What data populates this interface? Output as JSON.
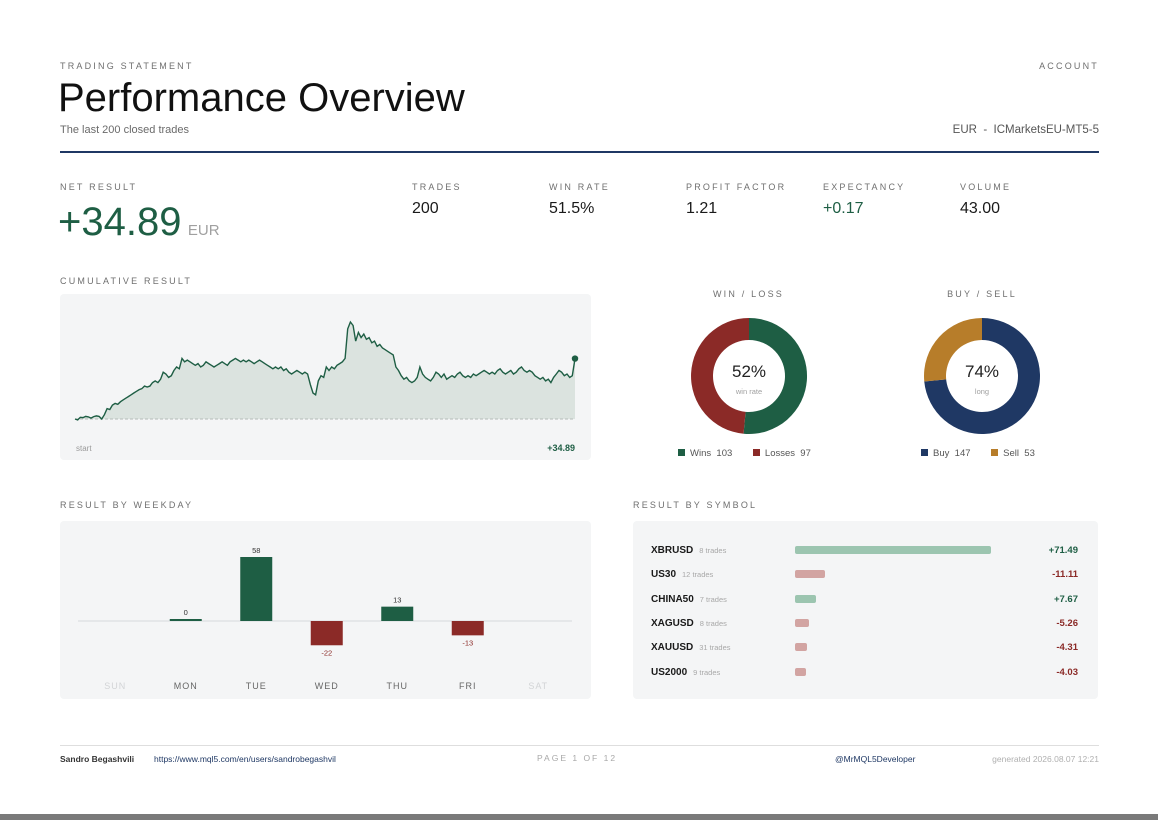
{
  "header": {
    "kicker": "TRADING STATEMENT",
    "title": "Performance Overview",
    "subtitle": "The last 200 closed trades",
    "account_label": "ACCOUNT",
    "account_info": "EUR  -  ICMarketsEU-MT5-5"
  },
  "stats": {
    "net_label": "NET RESULT",
    "net_value": "+34.89",
    "net_currency": "EUR",
    "items": [
      {
        "label": "TRADES",
        "value": "200"
      },
      {
        "label": "WIN RATE",
        "value": "51.5%"
      },
      {
        "label": "PROFIT FACTOR",
        "value": "1.21"
      },
      {
        "label": "EXPECTANCY",
        "value": "+0.17"
      },
      {
        "label": "VOLUME",
        "value": "43.00"
      }
    ]
  },
  "colors": {
    "green": "#1e5e44",
    "red": "#8b2a27",
    "navy": "#1f3864",
    "gold": "#b77d2a",
    "panel": "#f4f5f6",
    "area_fill": "#dbe3df",
    "bar_pos_light": "#9cc5b0",
    "bar_neg_light": "#d2a4a2"
  },
  "cumulative": {
    "title": "CUMULATIVE RESULT",
    "start_label": "start",
    "end_label": "+34.89"
  },
  "win_loss": {
    "title": "WIN / LOSS",
    "center_value": "52%",
    "center_label": "win rate",
    "legend": [
      {
        "name": "Wins",
        "count": "103",
        "color": "#1e5e44"
      },
      {
        "name": "Losses",
        "count": "97",
        "color": "#8b2a27"
      }
    ]
  },
  "buy_sell": {
    "title": "BUY / SELL",
    "center_value": "74%",
    "center_label": "long",
    "legend": [
      {
        "name": "Buy",
        "count": "147",
        "color": "#1f3864"
      },
      {
        "name": "Sell",
        "count": "53",
        "color": "#b77d2a"
      }
    ]
  },
  "weekday": {
    "title": "RESULT BY WEEKDAY"
  },
  "symbols": {
    "title": "RESULT BY SYMBOL",
    "rows": [
      {
        "symbol": "XBRUSD",
        "trades": "8 trades",
        "value": "+71.49",
        "amount": 71.49
      },
      {
        "symbol": "US30",
        "trades": "12 trades",
        "value": "-11.11",
        "amount": -11.11
      },
      {
        "symbol": "CHINA50",
        "trades": "7 trades",
        "value": "+7.67",
        "amount": 7.67
      },
      {
        "symbol": "XAGUSD",
        "trades": "8 trades",
        "value": "-5.26",
        "amount": -5.26
      },
      {
        "symbol": "XAUUSD",
        "trades": "31 trades",
        "value": "-4.31",
        "amount": -4.31
      },
      {
        "symbol": "US2000",
        "trades": "9 trades",
        "value": "-4.03",
        "amount": -4.03
      }
    ]
  },
  "footer": {
    "author": "Sandro Begashvili",
    "url": "https://www.mql5.com/en/users/sandrobegashvil",
    "page": "PAGE 1 OF 12",
    "handle": "@MrMQL5Developer",
    "generated": "generated 2026.08.07 12:21"
  },
  "chart_data": [
    {
      "type": "area",
      "title": "CUMULATIVE RESULT",
      "x_labels": [
        "start",
        "+34.89"
      ],
      "y": [
        0,
        -0.5,
        1,
        0.8,
        1.5,
        1.2,
        0.5,
        1.4,
        1.8,
        1.5,
        0,
        2.5,
        6,
        5.5,
        8,
        9,
        8.5,
        10,
        11,
        12,
        13,
        14,
        15,
        16,
        17,
        17.5,
        19,
        18.5,
        19,
        21,
        22,
        21,
        23,
        27,
        26,
        24,
        25,
        28,
        30,
        29,
        35,
        33,
        34,
        33,
        32,
        31,
        32,
        30,
        31,
        33,
        32,
        31,
        30,
        31,
        32,
        33,
        32,
        31,
        33,
        34,
        35,
        34,
        33,
        34,
        33,
        34,
        33,
        32,
        33,
        34,
        33,
        32,
        31,
        30,
        29,
        30,
        29,
        30,
        28,
        29,
        27,
        26,
        27,
        28,
        27,
        26,
        27,
        26,
        20,
        15,
        14,
        22,
        25,
        24,
        30,
        28,
        30,
        29,
        31,
        32,
        33,
        35,
        52,
        56,
        54,
        45,
        50,
        47,
        49,
        46,
        47,
        44,
        45,
        42,
        43,
        41,
        40,
        39,
        38,
        37,
        30,
        28,
        25,
        23,
        24,
        22,
        21,
        22,
        24,
        30,
        26,
        24,
        23,
        22,
        24,
        27,
        26,
        24,
        26,
        23,
        24,
        25,
        24,
        26,
        27,
        25,
        24,
        25,
        24,
        26,
        25,
        26,
        27,
        28,
        27,
        26,
        27,
        26,
        28,
        29,
        27,
        26,
        27,
        28,
        26,
        27,
        29,
        30,
        28,
        27,
        28,
        27,
        25,
        24,
        23,
        24,
        22,
        23,
        21,
        24,
        26,
        28,
        27,
        25,
        26,
        24,
        25,
        34.89
      ]
    },
    {
      "type": "pie",
      "title": "WIN / LOSS",
      "labels": [
        "Wins",
        "Losses"
      ],
      "values": [
        103,
        97
      ]
    },
    {
      "type": "pie",
      "title": "BUY / SELL",
      "labels": [
        "Buy",
        "Sell"
      ],
      "values": [
        147,
        53
      ]
    },
    {
      "type": "bar",
      "title": "RESULT BY WEEKDAY",
      "categories": [
        "SUN",
        "MON",
        "TUE",
        "WED",
        "THU",
        "FRI",
        "SAT"
      ],
      "values": [
        null,
        0,
        58,
        -22,
        13,
        -13,
        null
      ],
      "value_labels": [
        "",
        "0",
        "58",
        "-22",
        "13",
        "-13",
        ""
      ]
    },
    {
      "type": "bar",
      "orientation": "horizontal",
      "title": "RESULT BY SYMBOL",
      "categories": [
        "XBRUSD",
        "US30",
        "CHINA50",
        "XAGUSD",
        "XAUUSD",
        "US2000"
      ],
      "values": [
        71.49,
        -11.11,
        7.67,
        -5.26,
        -4.31,
        -4.03
      ]
    }
  ]
}
